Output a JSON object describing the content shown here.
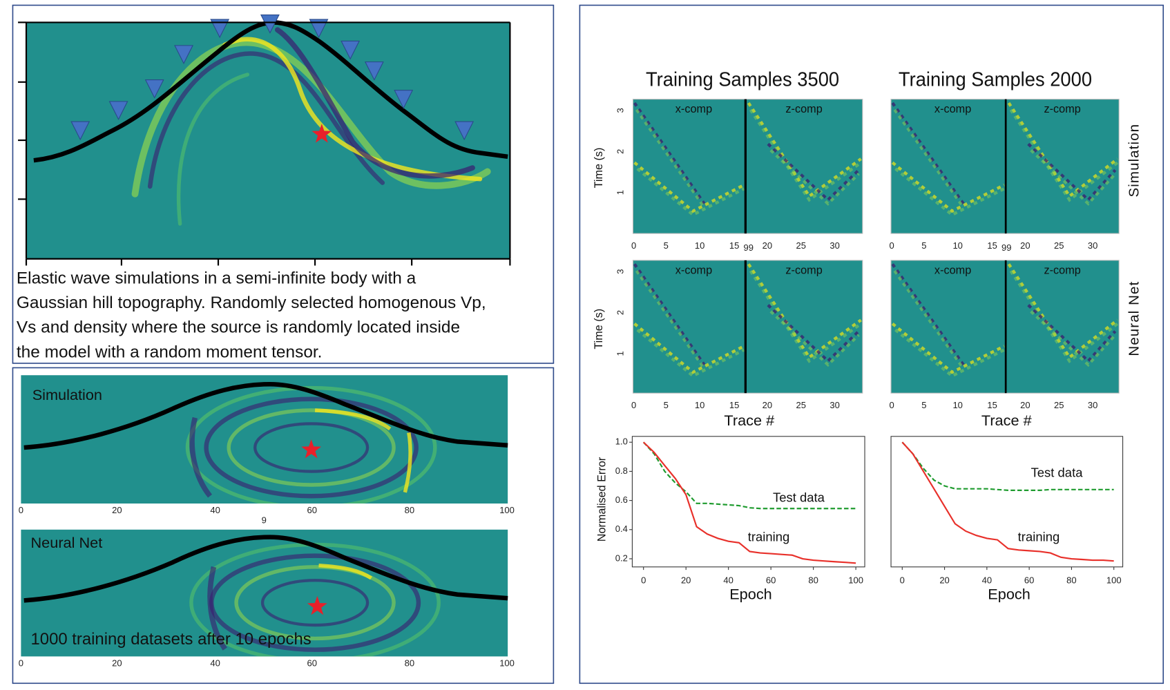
{
  "wave_setup": {
    "caption_lines": [
      "Elastic wave simulations in a semi-infinite body with a",
      "Gaussian hill topography. Randomly selected homogenous Vp,",
      "Vs and density where the source is randomly located inside",
      "the model with a random moment tensor."
    ]
  },
  "wave_compare": {
    "panel_labels": [
      "Simulation",
      "Neural Net"
    ],
    "note": "1000 training datasets after 10 epochs",
    "xticks": [
      0,
      20,
      40,
      60,
      80,
      100
    ],
    "stray_label": "9"
  },
  "seismograms": {
    "column_titles": [
      "Training Samples 3500",
      "Training Samples 2000"
    ],
    "row_labels": [
      "Simulation",
      "Neural Net"
    ],
    "comp_labels": [
      "x-comp",
      "z-comp"
    ],
    "y_label": "Time (s)",
    "yticks": [
      1,
      2,
      3
    ],
    "row1_xticks": [
      0,
      5,
      10,
      15,
      99,
      20,
      25,
      30
    ],
    "row2_xticks": [
      0,
      5,
      10,
      15,
      20,
      25,
      30
    ],
    "x_label": "Trace #"
  },
  "chart_data": [
    {
      "type": "line",
      "y_label": "Normalised Error",
      "x_label": "Epoch",
      "xlim": [
        -5.3,
        104.2
      ],
      "ylim": [
        0.144,
        1.04
      ],
      "xticks": [
        0,
        20,
        40,
        60,
        80,
        100
      ],
      "yticks": [
        0.2,
        0.4,
        0.6,
        0.8,
        {
          "value": 1,
          "label": "1.0"
        }
      ],
      "x": [
        0,
        5,
        10,
        15,
        20,
        25,
        30,
        35,
        40,
        45,
        50,
        55,
        60,
        65,
        70,
        75,
        80,
        85,
        90,
        95,
        100
      ],
      "series": [
        {
          "name": "Test data",
          "color": "#1e9b2e",
          "dashed": true,
          "values": [
            1.0,
            0.92,
            0.8,
            0.72,
            0.66,
            0.58,
            0.58,
            0.575,
            0.57,
            0.565,
            0.55,
            0.545,
            0.545,
            0.545,
            0.545,
            0.545,
            0.545,
            0.545,
            0.545,
            0.545,
            0.545
          ]
        },
        {
          "name": "training",
          "color": "#e8302a",
          "dashed": false,
          "values": [
            1.0,
            0.93,
            0.84,
            0.75,
            0.64,
            0.42,
            0.37,
            0.34,
            0.32,
            0.31,
            0.25,
            0.24,
            0.235,
            0.23,
            0.225,
            0.2,
            0.19,
            0.185,
            0.18,
            0.175,
            0.17
          ]
        }
      ]
    },
    {
      "type": "line",
      "x_label": "Epoch",
      "xlim": [
        -5.3,
        104.2
      ],
      "ylim": [
        0.144,
        1.04
      ],
      "xticks": [
        0,
        20,
        40,
        60,
        80,
        100
      ],
      "x": [
        0,
        5,
        10,
        15,
        20,
        25,
        30,
        35,
        40,
        45,
        50,
        55,
        60,
        65,
        70,
        75,
        80,
        85,
        90,
        95,
        100
      ],
      "series": [
        {
          "name": "Test data",
          "color": "#1e9b2e",
          "dashed": true,
          "values": [
            1.0,
            0.92,
            0.82,
            0.74,
            0.7,
            0.68,
            0.68,
            0.68,
            0.68,
            0.675,
            0.67,
            0.67,
            0.67,
            0.67,
            0.675,
            0.675,
            0.675,
            0.675,
            0.675,
            0.675,
            0.675
          ]
        },
        {
          "name": "training",
          "color": "#e8302a",
          "dashed": false,
          "values": [
            1.0,
            0.92,
            0.8,
            0.68,
            0.56,
            0.44,
            0.39,
            0.36,
            0.34,
            0.33,
            0.27,
            0.26,
            0.255,
            0.25,
            0.24,
            0.21,
            0.2,
            0.195,
            0.19,
            0.19,
            0.185
          ]
        }
      ]
    }
  ]
}
